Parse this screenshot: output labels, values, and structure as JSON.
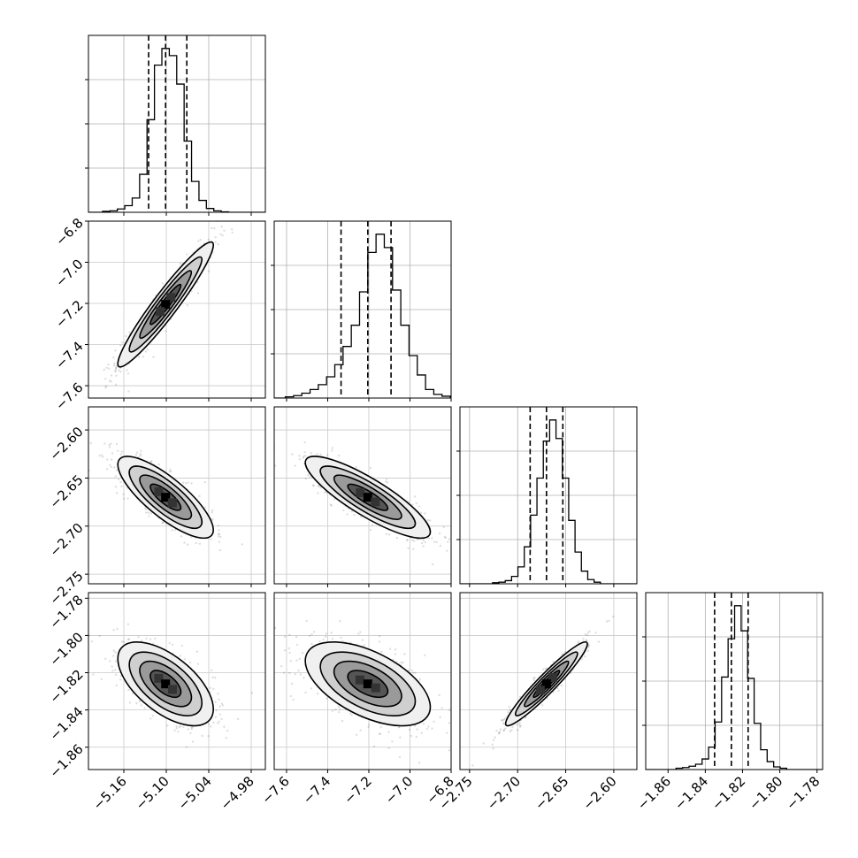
{
  "chart_data": {
    "type": "corner",
    "parameters": [
      {
        "range": [
          -5.21,
          -4.96
        ],
        "ticks": [
          -5.16,
          -5.1,
          -5.04,
          -4.98
        ],
        "tick_labels": [
          "−5.16",
          "−5.10",
          "−5.04",
          "−4.98"
        ],
        "quantiles": [
          -5.125,
          -5.101,
          -5.071
        ]
      },
      {
        "range": [
          -7.66,
          -6.8
        ],
        "ticks": [
          -7.6,
          -7.4,
          -7.2,
          -7.0,
          -6.8
        ],
        "tick_labels": [
          "−7.6",
          "−7.4",
          "−7.2",
          "−7.0",
          "−6.8"
        ],
        "quantiles": [
          -7.335,
          -7.205,
          -7.092
        ]
      },
      {
        "range": [
          -2.76,
          -2.576
        ],
        "ticks": [
          -2.75,
          -2.7,
          -2.65,
          -2.6
        ],
        "tick_labels": [
          "−2.75",
          "−2.70",
          "−2.65",
          "−2.60"
        ],
        "quantiles": [
          -2.687,
          -2.67,
          -2.653
        ]
      },
      {
        "range": [
          -1.872,
          -1.777
        ],
        "ticks": [
          -1.86,
          -1.84,
          -1.82,
          -1.8,
          -1.78
        ],
        "tick_labels": [
          "−1.86",
          "−1.84",
          "−1.82",
          "−1.80",
          "−1.78"
        ],
        "quantiles": [
          -1.835,
          -1.826,
          -1.817
        ]
      }
    ],
    "histograms": [
      [
        2,
        3,
        7,
        14,
        30,
        80,
        195,
        310,
        345,
        330,
        270,
        150,
        65,
        25,
        8,
        3,
        1
      ],
      [
        2,
        4,
        8,
        14,
        22,
        35,
        55,
        85,
        120,
        175,
        240,
        270,
        248,
        178,
        120,
        70,
        38,
        14,
        6,
        3
      ],
      [
        2,
        3,
        6,
        14,
        32,
        70,
        130,
        200,
        270,
        310,
        275,
        200,
        120,
        60,
        24,
        8,
        3
      ],
      [
        2,
        3,
        5,
        8,
        16,
        34,
        72,
        140,
        198,
        248,
        210,
        138,
        70,
        30,
        12,
        4,
        2
      ]
    ],
    "correlations": [
      [
        1.0,
        0.95,
        -0.8,
        -0.6
      ],
      [
        0.95,
        1.0,
        -0.85,
        -0.55
      ],
      [
        -0.8,
        -0.85,
        1.0,
        0.95
      ],
      [
        -0.6,
        -0.55,
        0.95,
        1.0
      ]
    ],
    "grid": true
  }
}
